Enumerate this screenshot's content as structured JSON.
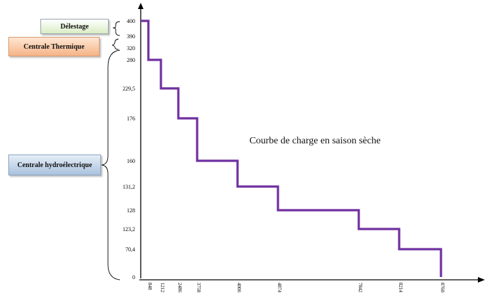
{
  "legend_boxes": {
    "delestage": "Délestage",
    "thermique": "Centrale Thermique",
    "hydro": "Centrale hydroélectrique"
  },
  "chart_data": {
    "type": "line",
    "step": true,
    "title": "Courbe de charge en saison sèche",
    "xlabel": "",
    "ylabel": "",
    "x_tick_labels": [
      "848",
      "1212",
      "2486",
      "3758",
      "4006",
      "4874",
      "7842",
      "8214",
      "8760"
    ],
    "y_tick_labels": [
      "400",
      "390",
      "320",
      "280",
      "229,5",
      "176",
      "160",
      "131,2",
      "128",
      "123,2",
      "70,4",
      "0"
    ],
    "series": [
      {
        "color": "#7030a0",
        "points": [
          [
            0,
            400
          ],
          [
            848,
            400
          ],
          [
            848,
            280
          ],
          [
            1212,
            280
          ],
          [
            1212,
            229.5
          ],
          [
            2486,
            229.5
          ],
          [
            2486,
            176
          ],
          [
            3758,
            176
          ],
          [
            3758,
            160
          ],
          [
            4006,
            160
          ],
          [
            4006,
            131.2
          ],
          [
            4874,
            131.2
          ],
          [
            4874,
            128
          ],
          [
            7842,
            128
          ],
          [
            7842,
            123.2
          ],
          [
            8214,
            123.2
          ],
          [
            8214,
            70.4
          ],
          [
            8760,
            70.4
          ],
          [
            8760,
            0
          ]
        ]
      }
    ],
    "grid": false
  }
}
